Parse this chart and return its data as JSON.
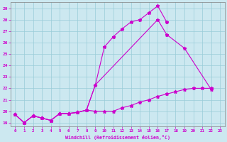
{
  "xlabel": "Windchill (Refroidissement éolien,°C)",
  "background_color": "#cce8f0",
  "grid_color": "#99ccd9",
  "line_color": "#cc00cc",
  "xlim": [
    -0.5,
    23.5
  ],
  "ylim": [
    18.7,
    29.5
  ],
  "yticks": [
    19,
    20,
    21,
    22,
    23,
    24,
    25,
    26,
    27,
    28,
    29
  ],
  "xticks": [
    0,
    1,
    2,
    3,
    4,
    5,
    6,
    7,
    8,
    9,
    10,
    11,
    12,
    13,
    14,
    15,
    16,
    17,
    18,
    19,
    20,
    21,
    22,
    23
  ],
  "line1_x": [
    0,
    1,
    2,
    3,
    4,
    5,
    6,
    7,
    8,
    9,
    10,
    11,
    12,
    13,
    14,
    15,
    16,
    17
  ],
  "line1_y": [
    19.7,
    19.0,
    19.6,
    19.4,
    19.2,
    19.8,
    19.8,
    19.9,
    20.1,
    22.3,
    25.6,
    26.5,
    27.2,
    27.8,
    28.0,
    28.6,
    29.2,
    27.8
  ],
  "line2_x": [
    0,
    1,
    2,
    3,
    4,
    5,
    6,
    7,
    8,
    9,
    16,
    17,
    19,
    22
  ],
  "line2_y": [
    19.7,
    19.0,
    19.6,
    19.4,
    19.2,
    19.8,
    19.8,
    19.9,
    20.1,
    22.3,
    28.0,
    26.7,
    25.5,
    21.9
  ],
  "line3_x": [
    0,
    1,
    2,
    3,
    4,
    5,
    6,
    7,
    8,
    9,
    10,
    11,
    12,
    13,
    14,
    15,
    16,
    17,
    18,
    19,
    20,
    21,
    22
  ],
  "line3_y": [
    19.7,
    19.0,
    19.6,
    19.4,
    19.2,
    19.8,
    19.8,
    19.9,
    20.1,
    20.0,
    20.0,
    20.0,
    20.3,
    20.5,
    20.8,
    21.0,
    21.3,
    21.5,
    21.7,
    21.9,
    22.0,
    22.0,
    22.0
  ]
}
